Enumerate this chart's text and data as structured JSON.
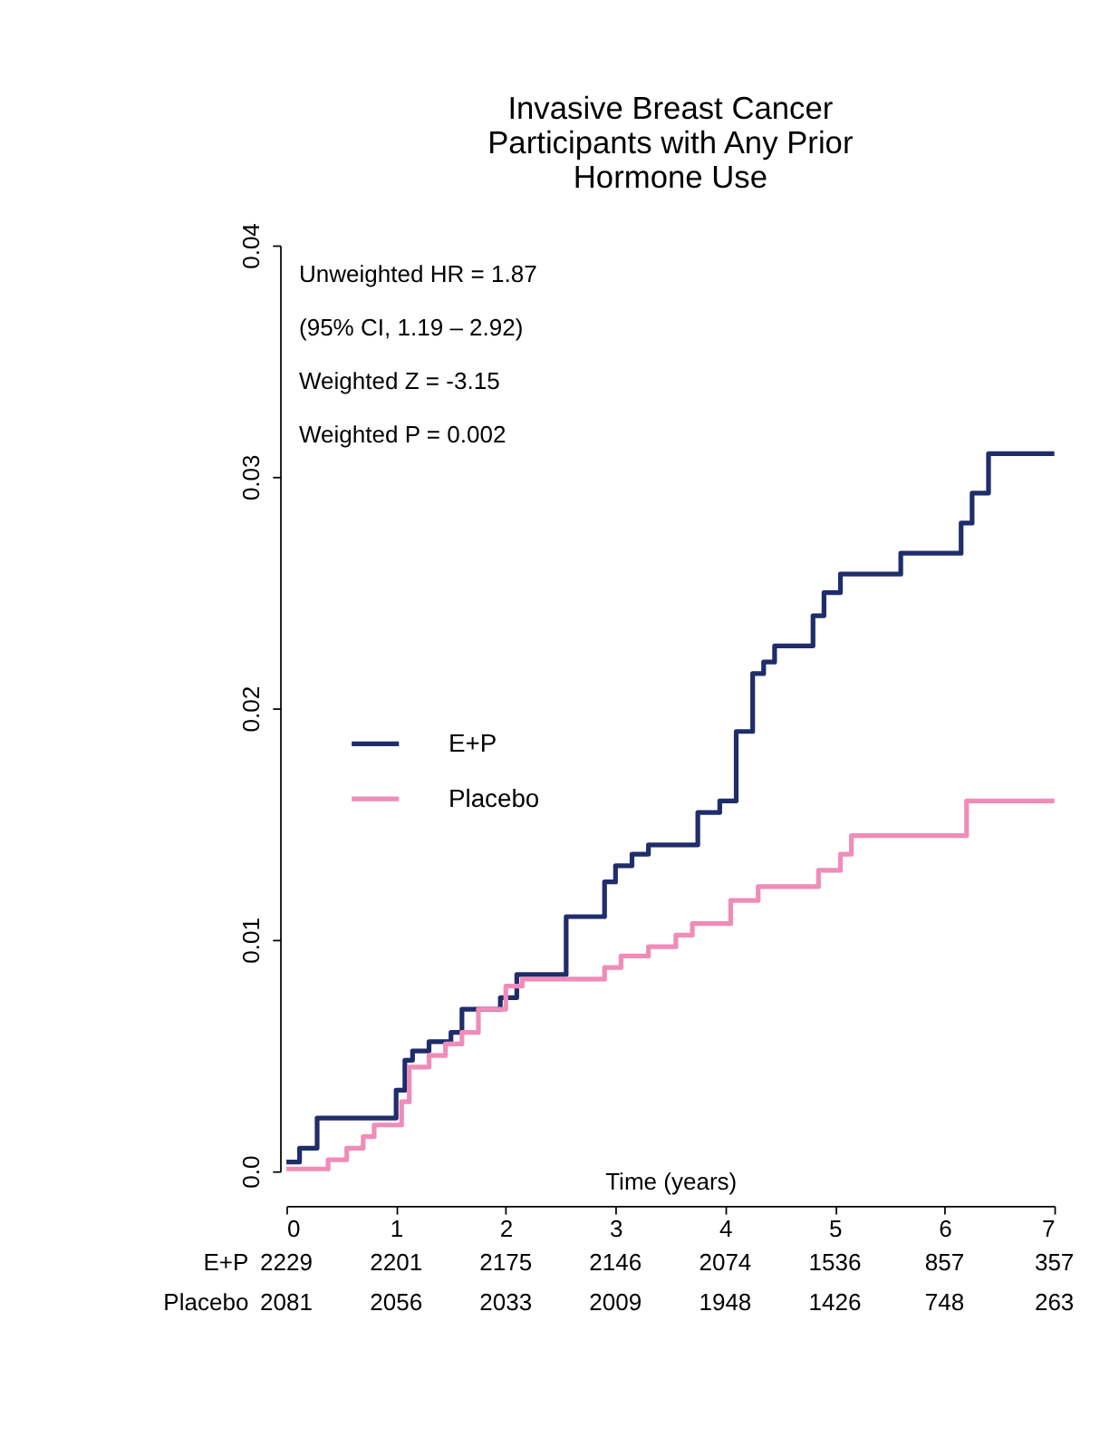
{
  "chart_data": {
    "type": "step",
    "title": "Invasive Breast Cancer Participants with Any Prior Hormone Use",
    "xlabel": "Time (years)",
    "xlim": [
      0,
      7
    ],
    "xticks": [
      0,
      1,
      2,
      3,
      4,
      5,
      6,
      7
    ],
    "ylim": [
      0,
      0.04
    ],
    "yticks": [
      {
        "value": 0,
        "label": "0.0"
      },
      0.01,
      0.02,
      0.03,
      0.04
    ],
    "legend": "left",
    "series": [
      {
        "name": "E+P",
        "color": "#1f2d6b",
        "x": [
          0,
          0.12,
          0.28,
          1.0,
          1.08,
          1.15,
          1.3,
          1.5,
          1.6,
          1.95,
          2.1,
          2.55,
          2.9,
          3.0,
          3.15,
          3.3,
          3.75,
          3.95,
          4.1,
          4.25,
          4.35,
          4.45,
          4.8,
          4.9,
          5.05,
          5.6,
          6.15,
          6.25,
          6.4,
          7.0
        ],
        "values": [
          0.0004,
          0.001,
          0.0023,
          0.0035,
          0.0048,
          0.0052,
          0.0056,
          0.006,
          0.007,
          0.0075,
          0.0085,
          0.011,
          0.0125,
          0.0132,
          0.0137,
          0.0141,
          0.0155,
          0.016,
          0.019,
          0.0215,
          0.022,
          0.0227,
          0.024,
          0.025,
          0.0258,
          0.0267,
          0.028,
          0.0293,
          0.031,
          0.031
        ]
      },
      {
        "name": "Placebo",
        "color": "#f08cb8",
        "x": [
          0,
          0.38,
          0.55,
          0.7,
          0.8,
          1.05,
          1.12,
          1.3,
          1.45,
          1.6,
          1.75,
          2.0,
          2.15,
          2.9,
          3.05,
          3.3,
          3.55,
          3.7,
          4.05,
          4.3,
          4.85,
          5.05,
          5.15,
          6.2,
          7.0
        ],
        "values": [
          0.0001,
          0.0005,
          0.001,
          0.0015,
          0.002,
          0.003,
          0.0045,
          0.005,
          0.0055,
          0.006,
          0.007,
          0.008,
          0.0083,
          0.0088,
          0.0093,
          0.0097,
          0.0102,
          0.0107,
          0.0117,
          0.0123,
          0.013,
          0.0137,
          0.0145,
          0.016,
          0.016
        ]
      }
    ],
    "annotations": [
      "Unweighted HR = 1.87",
      "(95% CI, 1.19 – 2.92)",
      "Weighted Z = -3.15",
      "Weighted P = 0.002",
      "E+P 2229 2201 2175 2146 2074 1536 857 357",
      "Placebo 2081 2056 2033 2009 1948 1426 748 263"
    ]
  }
}
